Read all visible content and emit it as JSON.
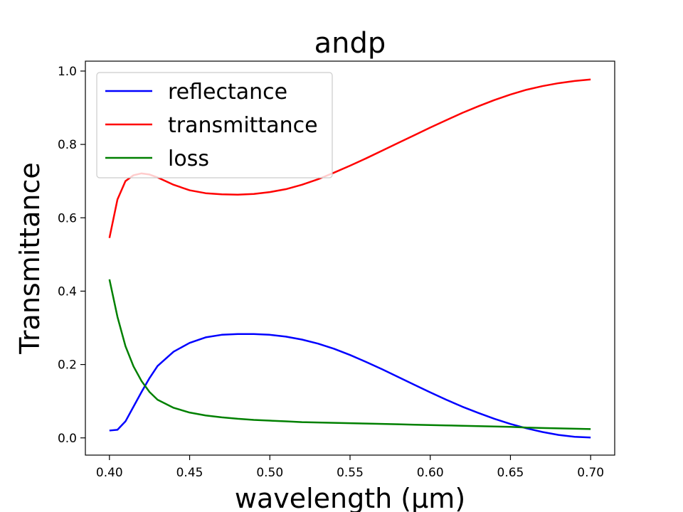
{
  "chart_data": {
    "type": "line",
    "title": "andp",
    "xlabel": "wavelength (µm)",
    "ylabel": "Transmittance",
    "xlim": [
      0.385,
      0.715
    ],
    "ylim": [
      -0.047,
      1.027
    ],
    "xticks": [
      0.4,
      0.45,
      0.5,
      0.55,
      0.6,
      0.65,
      0.7
    ],
    "xtick_labels": [
      "0.40",
      "0.45",
      "0.50",
      "0.55",
      "0.60",
      "0.65",
      "0.70"
    ],
    "yticks": [
      0.0,
      0.2,
      0.4,
      0.6,
      0.8,
      1.0
    ],
    "ytick_labels": [
      "0.0",
      "0.2",
      "0.4",
      "0.6",
      "0.8",
      "1.0"
    ],
    "grid": false,
    "legend_position": "top-left",
    "x": [
      0.4,
      0.405,
      0.41,
      0.415,
      0.42,
      0.425,
      0.43,
      0.44,
      0.45,
      0.46,
      0.47,
      0.48,
      0.49,
      0.5,
      0.51,
      0.52,
      0.53,
      0.54,
      0.55,
      0.56,
      0.57,
      0.58,
      0.59,
      0.6,
      0.61,
      0.62,
      0.63,
      0.64,
      0.65,
      0.66,
      0.67,
      0.68,
      0.69,
      0.7
    ],
    "series": [
      {
        "name": "reflectance",
        "color": "#0000ff",
        "values": [
          0.02,
          0.022,
          0.045,
          0.085,
          0.125,
          0.163,
          0.196,
          0.235,
          0.259,
          0.274,
          0.281,
          0.283,
          0.283,
          0.281,
          0.276,
          0.268,
          0.257,
          0.243,
          0.226,
          0.207,
          0.187,
          0.166,
          0.145,
          0.124,
          0.104,
          0.085,
          0.068,
          0.052,
          0.038,
          0.026,
          0.016,
          0.008,
          0.003,
          0.001
        ]
      },
      {
        "name": "transmittance",
        "color": "#ff0000",
        "values": [
          0.545,
          0.65,
          0.7,
          0.716,
          0.721,
          0.718,
          0.71,
          0.69,
          0.675,
          0.667,
          0.664,
          0.663,
          0.665,
          0.67,
          0.678,
          0.69,
          0.705,
          0.723,
          0.742,
          0.762,
          0.783,
          0.804,
          0.825,
          0.846,
          0.866,
          0.886,
          0.904,
          0.921,
          0.936,
          0.949,
          0.959,
          0.967,
          0.973,
          0.977
        ]
      },
      {
        "name": "loss",
        "color": "#008000",
        "values": [
          0.432,
          0.33,
          0.25,
          0.195,
          0.155,
          0.125,
          0.104,
          0.082,
          0.069,
          0.061,
          0.056,
          0.052,
          0.049,
          0.047,
          0.045,
          0.043,
          0.042,
          0.041,
          0.04,
          0.039,
          0.038,
          0.037,
          0.036,
          0.035,
          0.034,
          0.033,
          0.032,
          0.031,
          0.03,
          0.028,
          0.027,
          0.026,
          0.025,
          0.024
        ]
      }
    ]
  }
}
